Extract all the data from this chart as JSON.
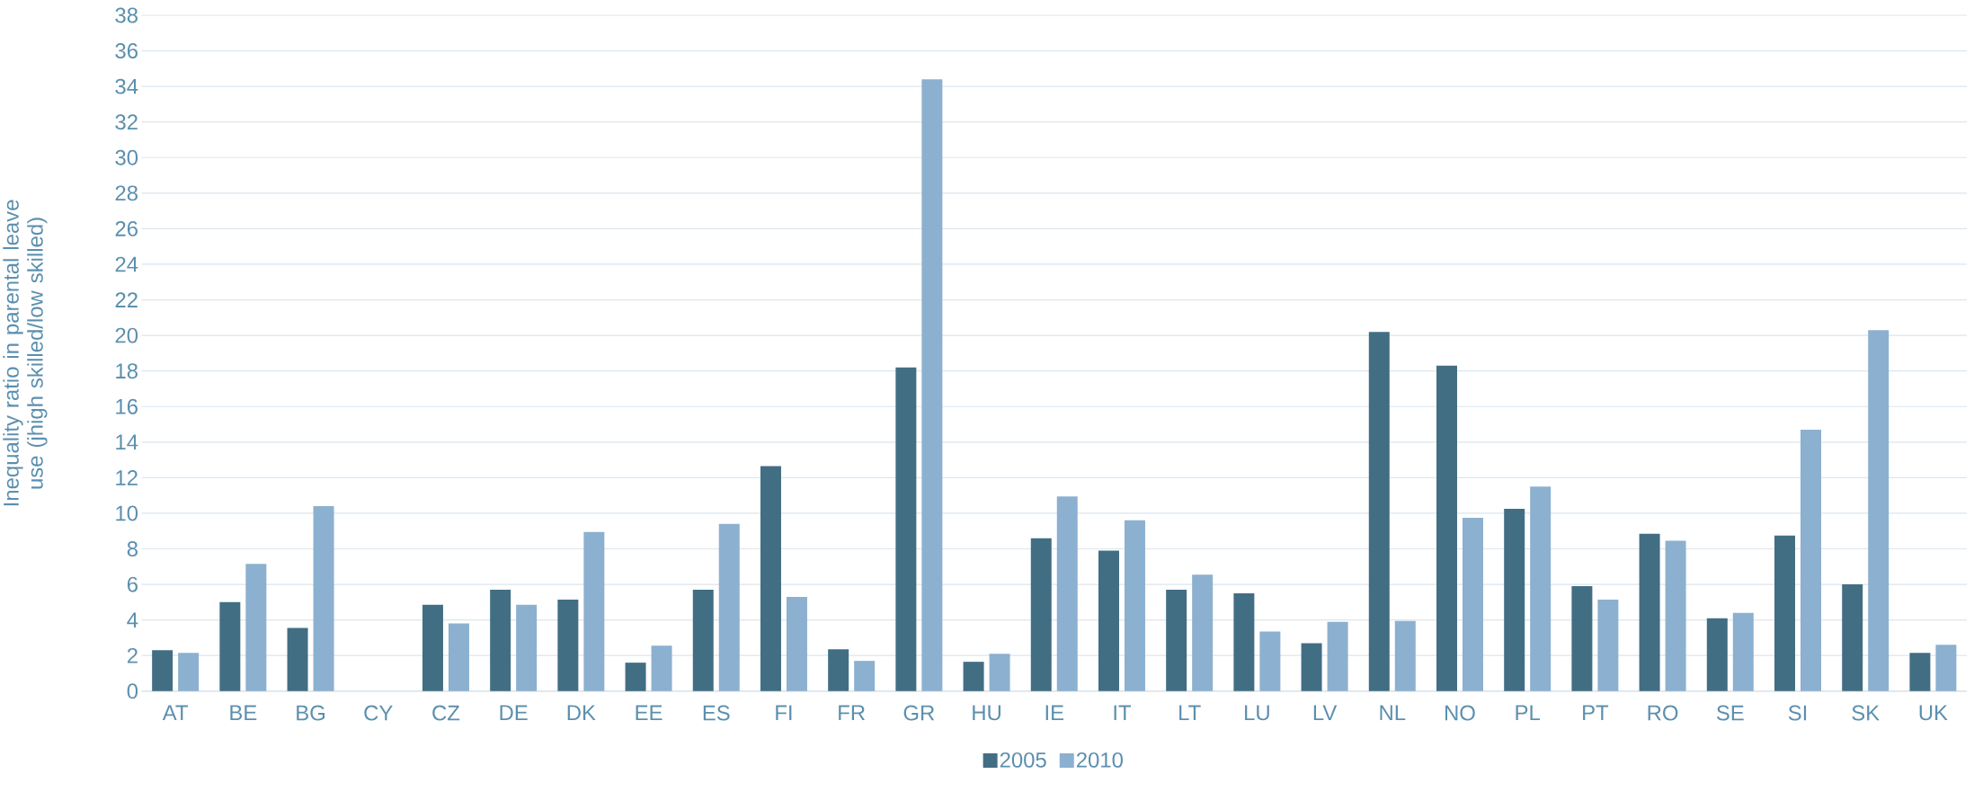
{
  "chart_data": {
    "type": "bar",
    "ylabel": "Inequality ratio in parental leave use (jhigh skilled/low skilled)",
    "categories": [
      "AT",
      "BE",
      "BG",
      "CY",
      "CZ",
      "DE",
      "DK",
      "EE",
      "ES",
      "FI",
      "FR",
      "GR",
      "HU",
      "IE",
      "IT",
      "LT",
      "LU",
      "LV",
      "NL",
      "NO",
      "PL",
      "PT",
      "RO",
      "SE",
      "SI",
      "SK",
      "UK"
    ],
    "series": [
      {
        "name": "2005",
        "color": "#426e84",
        "values": [
          2.3,
          5.0,
          3.55,
          null,
          4.85,
          5.7,
          5.15,
          1.6,
          5.7,
          12.65,
          2.35,
          18.2,
          1.65,
          8.6,
          7.9,
          5.7,
          5.5,
          2.7,
          20.2,
          18.3,
          10.25,
          5.9,
          8.85,
          4.1,
          8.75,
          6.0,
          2.15
        ]
      },
      {
        "name": "2010",
        "color": "#8cb0cf",
        "values": [
          2.15,
          7.15,
          10.4,
          null,
          3.8,
          4.85,
          8.95,
          2.55,
          9.4,
          5.3,
          1.7,
          34.4,
          2.1,
          10.95,
          9.6,
          6.55,
          3.35,
          3.9,
          3.95,
          9.75,
          11.5,
          5.15,
          8.45,
          4.4,
          14.7,
          20.3,
          2.6
        ]
      }
    ],
    "ylim": [
      0,
      38
    ],
    "yticks": [
      0,
      2,
      4,
      6,
      8,
      10,
      12,
      14,
      16,
      18,
      20,
      22,
      24,
      26,
      28,
      30,
      32,
      34,
      36,
      38
    ],
    "grid": "y",
    "legend": "bottom"
  }
}
